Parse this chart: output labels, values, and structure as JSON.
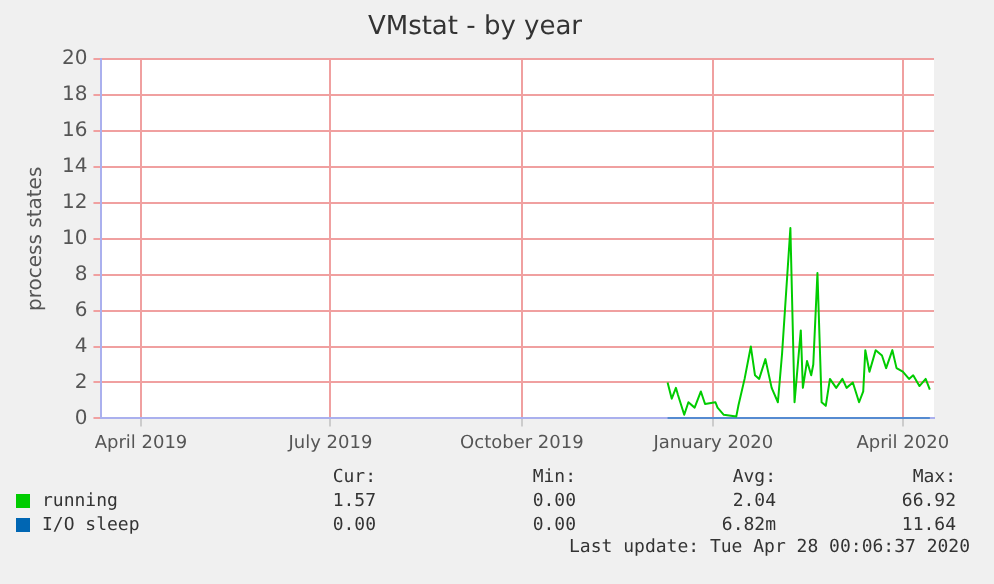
{
  "chart_data": {
    "type": "line",
    "title": "VMstat - by year",
    "ylabel": "process states",
    "xlim": [
      "2019-03-13",
      "2020-04-16"
    ],
    "xticks": [
      {
        "value": "2019-04-01",
        "label": "April 2019"
      },
      {
        "value": "2019-07-01",
        "label": "July 2019"
      },
      {
        "value": "2019-10-01",
        "label": "October 2019"
      },
      {
        "value": "2020-01-01",
        "label": "January 2020"
      },
      {
        "value": "2020-04-01",
        "label": "April 2020"
      }
    ],
    "ylim": [
      0,
      20
    ],
    "yticks": [
      0,
      2,
      4,
      6,
      8,
      10,
      12,
      14,
      16,
      18,
      20
    ],
    "grid": true,
    "legend": "bottom",
    "marker": "none",
    "line_style": "solid",
    "series": [
      {
        "name": "running",
        "color": "#00cc00",
        "x": [
          "2019-12-10",
          "2019-12-12",
          "2019-12-14",
          "2019-12-15",
          "2019-12-18",
          "2019-12-20",
          "2019-12-23",
          "2019-12-26",
          "2019-12-28",
          "2020-01-02",
          "2020-01-03",
          "2020-01-06",
          "2020-01-12",
          "2020-01-13",
          "2020-01-16",
          "2020-01-19",
          "2020-01-21",
          "2020-01-23",
          "2020-01-26",
          "2020-01-29",
          "2020-02-01",
          "2020-02-03",
          "2020-02-07",
          "2020-02-09",
          "2020-02-12",
          "2020-02-13",
          "2020-02-15",
          "2020-02-17",
          "2020-02-18",
          "2020-02-20",
          "2020-02-22",
          "2020-02-24",
          "2020-02-26",
          "2020-02-29",
          "2020-03-03",
          "2020-03-05",
          "2020-03-08",
          "2020-03-11",
          "2020-03-13",
          "2020-03-14",
          "2020-03-16",
          "2020-03-19",
          "2020-03-22",
          "2020-03-24",
          "2020-03-27",
          "2020-03-29",
          "2020-04-01",
          "2020-04-04",
          "2020-04-06",
          "2020-04-09",
          "2020-04-12",
          "2020-04-14"
        ],
        "values": [
          2.0,
          1.1,
          1.7,
          1.3,
          0.2,
          0.9,
          0.6,
          1.5,
          0.8,
          0.9,
          0.6,
          0.2,
          0.1,
          0.7,
          2.2,
          4.0,
          2.4,
          2.2,
          3.3,
          1.7,
          0.9,
          3.6,
          10.6,
          0.9,
          4.9,
          1.7,
          3.2,
          2.4,
          3.0,
          8.1,
          0.9,
          0.7,
          2.2,
          1.7,
          2.2,
          1.7,
          2.0,
          0.9,
          1.5,
          3.8,
          2.6,
          3.8,
          3.5,
          2.8,
          3.8,
          2.8,
          2.6,
          2.2,
          2.4,
          1.8,
          2.2,
          1.6
        ]
      },
      {
        "name": "I/O sleep",
        "color": "#0066b3",
        "x": [
          "2019-12-10",
          "2020-04-14"
        ],
        "values": [
          0,
          0
        ]
      }
    ],
    "annotations": [
      "Cur:",
      "Min:",
      "Avg:",
      "Max:",
      "1.57",
      "0.00",
      "2.04",
      "66.92",
      "0.00",
      "0.00",
      "6.82m",
      "11.64",
      "Last update: Tue Apr 28 00:06:37 2020"
    ]
  }
}
